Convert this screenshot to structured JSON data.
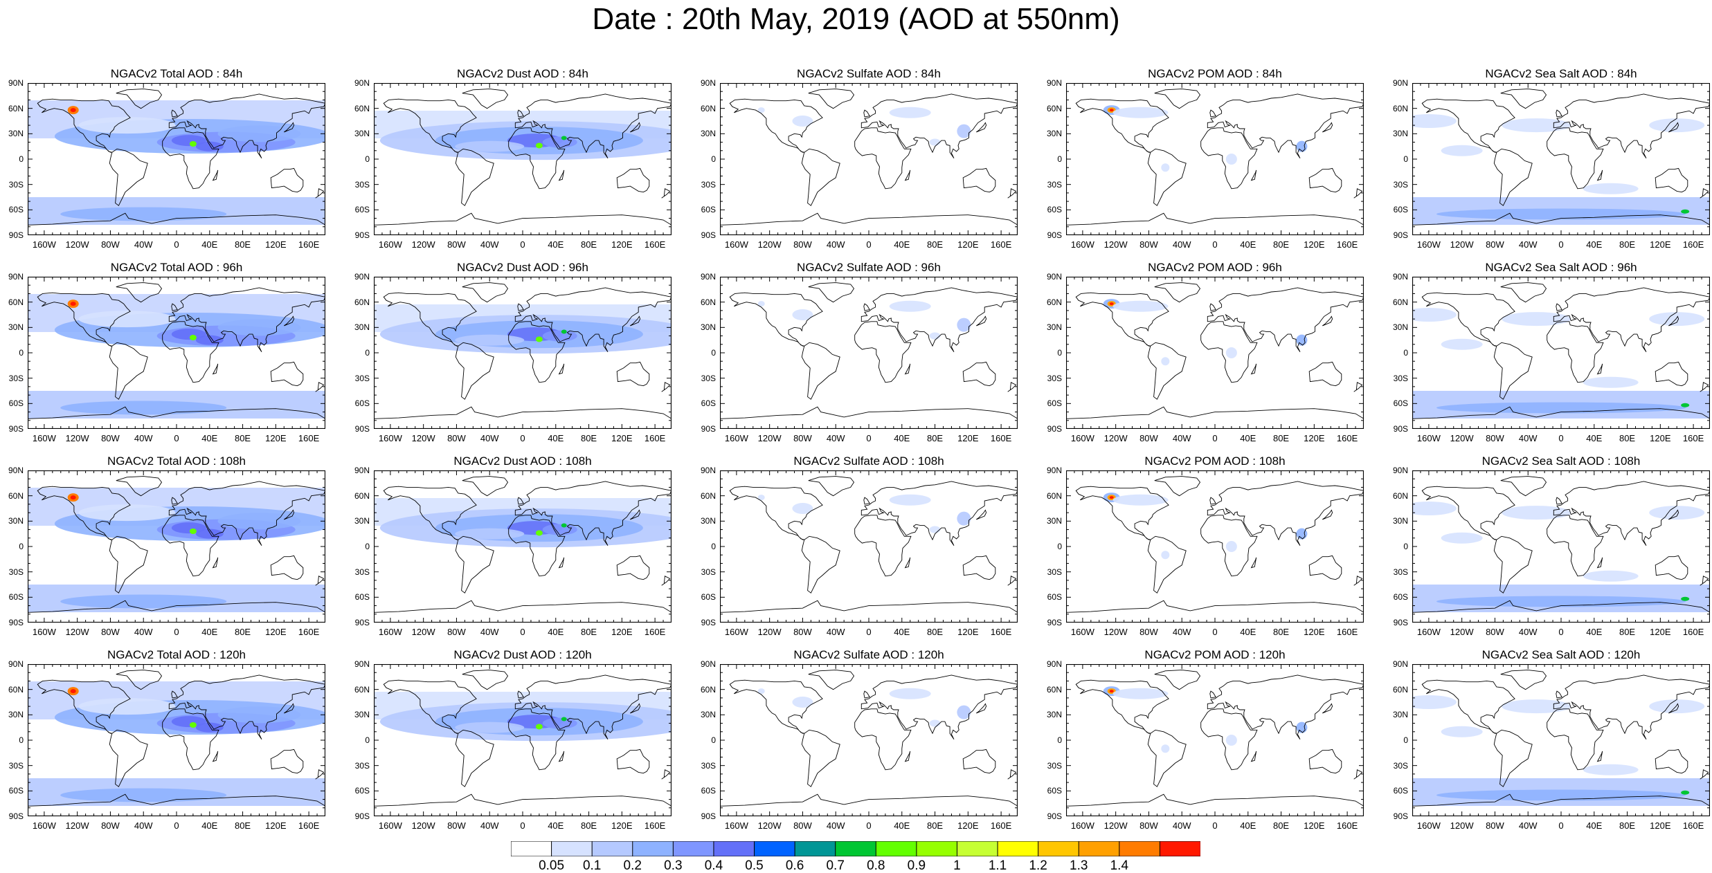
{
  "title": "Date : 20th May, 2019 (AOD at 550nm)",
  "lat_labels": [
    "90N",
    "60N",
    "30N",
    "0",
    "30S",
    "60S",
    "90S"
  ],
  "lon_labels": [
    "160W",
    "120W",
    "80W",
    "40W",
    "0",
    "40E",
    "80E",
    "120E",
    "160E"
  ],
  "panels": [
    [
      "NGACv2 Total AOD : 84h",
      "NGACv2 Dust AOD : 84h",
      "NGACv2 Sulfate AOD : 84h",
      "NGACv2 POM AOD : 84h",
      "NGACv2 Sea Salt AOD : 84h"
    ],
    [
      "NGACv2 Total AOD : 96h",
      "NGACv2 Dust AOD : 96h",
      "NGACv2 Sulfate AOD : 96h",
      "NGACv2 POM AOD : 96h",
      "NGACv2 Sea Salt AOD : 96h"
    ],
    [
      "NGACv2 Total AOD : 108h",
      "NGACv2 Dust AOD : 108h",
      "NGACv2 Sulfate AOD : 108h",
      "NGACv2 POM AOD : 108h",
      "NGACv2 Sea Salt AOD : 108h"
    ],
    [
      "NGACv2 Total AOD : 120h",
      "NGACv2 Dust AOD : 120h",
      "NGACv2 Sulfate AOD : 120h",
      "NGACv2 POM AOD : 120h",
      "NGACv2 Sea Salt  AOD : 120h"
    ]
  ],
  "colorbar": {
    "labels": [
      "0.05",
      "0.1",
      "0.2",
      "0.3",
      "0.4",
      "0.5",
      "0.6",
      "0.7",
      "0.8",
      "0.9",
      "1",
      "1.1",
      "1.2",
      "1.3",
      "1.4"
    ],
    "colors": [
      "#ffffff",
      "#d6e2ff",
      "#b5c9ff",
      "#8eb2ff",
      "#7f96ff",
      "#6370f8",
      "#0063ff",
      "#009696",
      "#00c633",
      "#63ff00",
      "#96ff00",
      "#c6ff33",
      "#ffff00",
      "#ffc600",
      "#ffa000",
      "#ff7c00",
      "#ff1900"
    ]
  },
  "legend": {
    "data_name": "legend"
  }
}
